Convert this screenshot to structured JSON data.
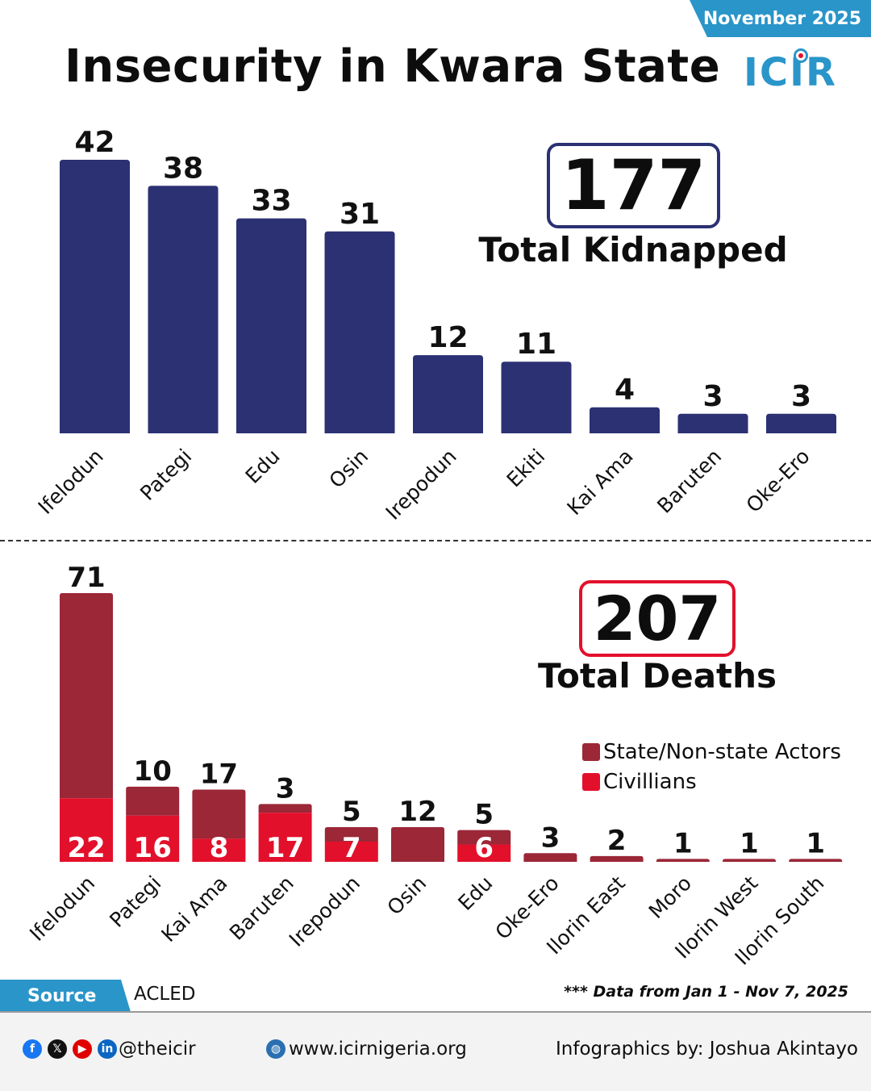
{
  "header": {
    "date": "November 2025",
    "title": "Insecurity in Kwara State",
    "logo_text": "ICIR"
  },
  "kidnapped": {
    "total": "177",
    "total_label": "Total Kidnapped"
  },
  "deaths": {
    "total": "207",
    "total_label": "Total Deaths"
  },
  "legend": {
    "state_actors": "State/Non-state Actors",
    "civilians": "Civillians"
  },
  "colors": {
    "navy": "#2b3173",
    "maroon": "#9b2737",
    "red": "#e3102b",
    "accent_blue": "#2a95c9"
  },
  "footer": {
    "source_label": "Source",
    "source_value": "ACLED",
    "note": "*** Data from Jan 1 - Nov 7, 2025",
    "handle": "@theicir",
    "website": "www.icirnigeria.org",
    "credit": "Infographics by: Joshua Akintayo",
    "social_icons": [
      "facebook-icon",
      "x-icon",
      "youtube-icon",
      "linkedin-icon"
    ]
  },
  "chart_data": [
    {
      "type": "bar",
      "title": "Total Kidnapped",
      "categories": [
        "Ifelodun",
        "Pategi",
        "Edu",
        "Osin",
        "Irepodun",
        "Ekiti",
        "Kai Ama",
        "Baruten",
        "Oke-Ero"
      ],
      "values": [
        42,
        38,
        33,
        31,
        12,
        11,
        4,
        3,
        3
      ],
      "ylim": [
        0,
        42
      ],
      "grid": false
    },
    {
      "type": "bar",
      "stacked": true,
      "title": "Total Deaths",
      "categories": [
        "Ifelodun",
        "Pategi",
        "Kai Ama",
        "Baruten",
        "Irepodun",
        "Osin",
        "Edu",
        "Oke-Ero",
        "Ilorin East",
        "Moro",
        "Ilorin West",
        "Ilorin South"
      ],
      "series": [
        {
          "name": "Civillians",
          "values": [
            22,
            16,
            8,
            17,
            7,
            0,
            6,
            0,
            0,
            0,
            0,
            0
          ]
        },
        {
          "name": "State/Non-state Actors",
          "values": [
            71,
            10,
            17,
            3,
            5,
            12,
            5,
            3,
            2,
            1,
            1,
            1
          ]
        }
      ],
      "legend_position": "right",
      "grid": false
    }
  ]
}
